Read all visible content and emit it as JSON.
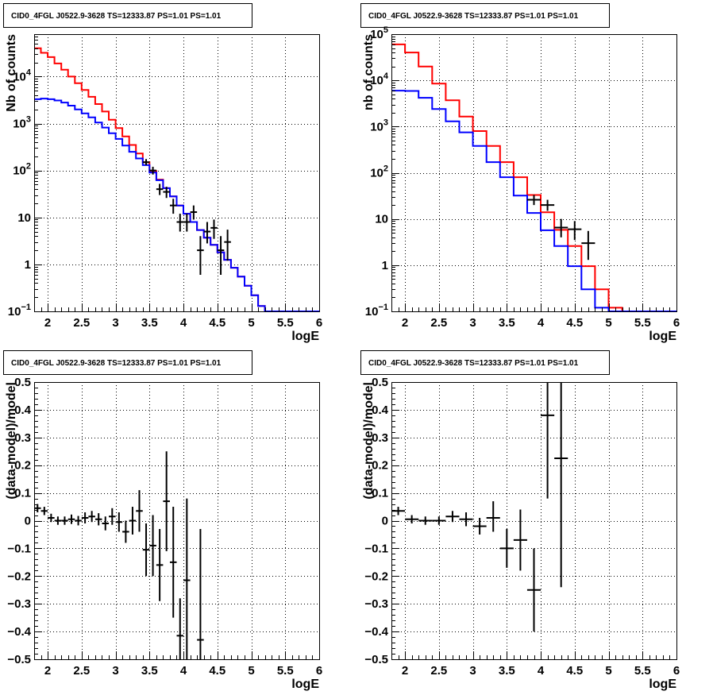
{
  "chart_data": [
    {
      "type": "histogram-step",
      "title": "CID0_4FGL J0522.9-3628 TS=12333.87 PS=1.01 PS=1.01",
      "xlabel": "logE",
      "ylabel": "Nb of counts",
      "xlim": [
        1.8,
        6.0
      ],
      "ylim": [
        0.1,
        80000
      ],
      "yscale": "log",
      "grid": true,
      "xticks": [
        "2",
        "2.5",
        "3",
        "3.5",
        "4",
        "4.5",
        "5",
        "5.5",
        "6"
      ],
      "xtick_values": [
        2,
        2.5,
        3,
        3.5,
        4,
        4.5,
        5,
        5.5,
        6
      ],
      "yticks": [
        {
          "value": 0.1,
          "base": "10",
          "exp": "−1"
        },
        {
          "value": 1,
          "label": "1"
        },
        {
          "value": 10,
          "label": "10"
        },
        {
          "value": 100,
          "base": "10",
          "exp": "2"
        },
        {
          "value": 1000,
          "base": "10",
          "exp": "3"
        },
        {
          "value": 10000,
          "base": "10",
          "exp": "4"
        }
      ],
      "bin_width": 0.1,
      "series": [
        {
          "color": "#ff0000",
          "edges_start": 1.8,
          "values": [
            40000,
            32000,
            26000,
            19000,
            14000,
            10000,
            7200,
            5200,
            3700,
            2600,
            1800,
            1200,
            800,
            530,
            350,
            230,
            150,
            98,
            64,
            42,
            28,
            18,
            12,
            8,
            5.4,
            3.7,
            2.6,
            1.8,
            1.25,
            0.85,
            0.55,
            0.35,
            0.22,
            0.13,
            0.1,
            0.1,
            0.1,
            0.1,
            0.1,
            0.1,
            0.1,
            0.1
          ]
        },
        {
          "color": "#0000ff",
          "edges_start": 1.8,
          "values": [
            3300,
            3400,
            3300,
            3100,
            2800,
            2400,
            2000,
            1650,
            1350,
            1050,
            820,
            620,
            470,
            340,
            250,
            180,
            130,
            90,
            62,
            42,
            28,
            18,
            12,
            8,
            5.4,
            3.7,
            2.6,
            1.8,
            1.25,
            0.85,
            0.55,
            0.35,
            0.22,
            0.13,
            0.1,
            0.1,
            0.1,
            0.1,
            0.1,
            0.1,
            0.1,
            0.1
          ]
        }
      ],
      "points": [
        {
          "x": 3.45,
          "y": 150,
          "xerr": 0.05,
          "ylo": 130,
          "yhi": 175
        },
        {
          "x": 3.55,
          "y": 100,
          "xerr": 0.05,
          "ylo": 82,
          "yhi": 120
        },
        {
          "x": 3.65,
          "y": 40,
          "xerr": 0.05,
          "ylo": 30,
          "yhi": 52
        },
        {
          "x": 3.75,
          "y": 35,
          "xerr": 0.05,
          "ylo": 26,
          "yhi": 45
        },
        {
          "x": 3.85,
          "y": 18,
          "xerr": 0.05,
          "ylo": 12,
          "yhi": 25
        },
        {
          "x": 3.95,
          "y": 8,
          "xerr": 0.05,
          "ylo": 5,
          "yhi": 12
        },
        {
          "x": 4.05,
          "y": 8,
          "xerr": 0.05,
          "ylo": 5,
          "yhi": 12
        },
        {
          "x": 4.15,
          "y": 13,
          "xerr": 0.05,
          "ylo": 9,
          "yhi": 18
        },
        {
          "x": 4.25,
          "y": 2,
          "xerr": 0.05,
          "ylo": 0.6,
          "yhi": 4
        },
        {
          "x": 4.35,
          "y": 5,
          "xerr": 0.05,
          "ylo": 2.8,
          "yhi": 8
        },
        {
          "x": 4.45,
          "y": 6,
          "xerr": 0.05,
          "ylo": 3.5,
          "yhi": 9
        },
        {
          "x": 4.55,
          "y": 2,
          "xerr": 0.05,
          "ylo": 0.6,
          "yhi": 4
        },
        {
          "x": 4.65,
          "y": 3,
          "xerr": 0.05,
          "ylo": 1.2,
          "yhi": 5.5
        }
      ]
    },
    {
      "type": "histogram-step",
      "title": "CID0_4FGL J0522.9-3628 TS=12333.87 PS=1.01 PS=1.01",
      "xlabel": "logE",
      "ylabel": "nb of counts",
      "xlim": [
        1.8,
        6.0
      ],
      "ylim": [
        0.1,
        100000
      ],
      "yscale": "log",
      "grid": true,
      "xticks": [
        "2",
        "2.5",
        "3",
        "3.5",
        "4",
        "4.5",
        "5",
        "5.5",
        "6"
      ],
      "xtick_values": [
        2,
        2.5,
        3,
        3.5,
        4,
        4.5,
        5,
        5.5,
        6
      ],
      "yticks": [
        {
          "value": 0.1,
          "base": "10",
          "exp": "−1"
        },
        {
          "value": 1,
          "label": "1"
        },
        {
          "value": 10,
          "label": "10"
        },
        {
          "value": 100,
          "base": "10",
          "exp": "2"
        },
        {
          "value": 1000,
          "base": "10",
          "exp": "3"
        },
        {
          "value": 10000,
          "base": "10",
          "exp": "4"
        },
        {
          "value": 100000,
          "base": "10",
          "exp": "5"
        }
      ],
      "bin_width": 0.2,
      "series": [
        {
          "color": "#ff0000",
          "edges_start": 1.8,
          "values": [
            60000,
            40000,
            20000,
            8500,
            3700,
            1650,
            800,
            380,
            170,
            80,
            33,
            14,
            5.8,
            2.6,
            0.95,
            0.3,
            0.12,
            0.1,
            0.1,
            0.1,
            0.1
          ]
        },
        {
          "color": "#0000ff",
          "edges_start": 1.8,
          "values": [
            6000,
            5900,
            4200,
            2400,
            1300,
            750,
            380,
            170,
            80,
            32,
            13.5,
            5.7,
            2.6,
            0.95,
            0.3,
            0.12,
            0.1,
            0.1,
            0.1,
            0.1,
            0.1
          ]
        }
      ],
      "points": [
        {
          "x": 3.9,
          "y": 26,
          "xerr": 0.1,
          "ylo": 20,
          "yhi": 33
        },
        {
          "x": 4.1,
          "y": 20,
          "xerr": 0.1,
          "ylo": 15,
          "yhi": 26
        },
        {
          "x": 4.3,
          "y": 6.5,
          "xerr": 0.1,
          "ylo": 4,
          "yhi": 10
        },
        {
          "x": 4.5,
          "y": 6,
          "xerr": 0.1,
          "ylo": 3.5,
          "yhi": 9
        },
        {
          "x": 4.7,
          "y": 3,
          "xerr": 0.1,
          "ylo": 1.3,
          "yhi": 5.5
        }
      ]
    },
    {
      "type": "errorbar",
      "title": "CID0_4FGL J0522.9-3628 TS=12333.87 PS=1.01 PS=1.01",
      "xlabel": "logE",
      "ylabel": "(data-model)/model",
      "xlim": [
        1.8,
        6.0
      ],
      "ylim": [
        -0.5,
        0.5
      ],
      "yscale": "linear",
      "grid": true,
      "xticks": [
        "2",
        "2.5",
        "3",
        "3.5",
        "4",
        "4.5",
        "5",
        "5.5",
        "6"
      ],
      "xtick_values": [
        2,
        2.5,
        3,
        3.5,
        4,
        4.5,
        5,
        5.5,
        6
      ],
      "yticks": [
        {
          "value": -0.5,
          "label": "−0.5"
        },
        {
          "value": -0.4,
          "label": "−0.4"
        },
        {
          "value": -0.3,
          "label": "−0.3"
        },
        {
          "value": -0.2,
          "label": "−0.2"
        },
        {
          "value": -0.1,
          "label": "−0.1"
        },
        {
          "value": 0,
          "label": "0"
        },
        {
          "value": 0.1,
          "label": "0.1"
        },
        {
          "value": 0.2,
          "label": "0.2"
        },
        {
          "value": 0.3,
          "label": "0.3"
        },
        {
          "value": 0.4,
          "label": "0.4"
        },
        {
          "value": 0.5,
          "label": "0.5"
        }
      ],
      "points": [
        {
          "x": 1.85,
          "y": 0.045,
          "xerr": 0.05,
          "ylo": 0.03,
          "yhi": 0.06
        },
        {
          "x": 1.95,
          "y": 0.035,
          "xerr": 0.05,
          "ylo": 0.02,
          "yhi": 0.05
        },
        {
          "x": 2.05,
          "y": 0.01,
          "xerr": 0.05,
          "ylo": -0.005,
          "yhi": 0.025
        },
        {
          "x": 2.15,
          "y": 0.0,
          "xerr": 0.05,
          "ylo": -0.015,
          "yhi": 0.015
        },
        {
          "x": 2.25,
          "y": 0.0,
          "xerr": 0.05,
          "ylo": -0.015,
          "yhi": 0.015
        },
        {
          "x": 2.35,
          "y": 0.005,
          "xerr": 0.05,
          "ylo": -0.012,
          "yhi": 0.022
        },
        {
          "x": 2.45,
          "y": 0.0,
          "xerr": 0.05,
          "ylo": -0.017,
          "yhi": 0.017
        },
        {
          "x": 2.55,
          "y": 0.01,
          "xerr": 0.05,
          "ylo": -0.01,
          "yhi": 0.03
        },
        {
          "x": 2.65,
          "y": 0.015,
          "xerr": 0.05,
          "ylo": -0.005,
          "yhi": 0.035
        },
        {
          "x": 2.75,
          "y": 0.005,
          "xerr": 0.05,
          "ylo": -0.017,
          "yhi": 0.027
        },
        {
          "x": 2.85,
          "y": -0.01,
          "xerr": 0.05,
          "ylo": -0.035,
          "yhi": 0.015
        },
        {
          "x": 2.95,
          "y": 0.015,
          "xerr": 0.05,
          "ylo": -0.015,
          "yhi": 0.045
        },
        {
          "x": 3.05,
          "y": -0.005,
          "xerr": 0.05,
          "ylo": -0.04,
          "yhi": 0.03
        },
        {
          "x": 3.15,
          "y": -0.04,
          "xerr": 0.05,
          "ylo": -0.08,
          "yhi": 0.0
        },
        {
          "x": 3.25,
          "y": 0.0,
          "xerr": 0.05,
          "ylo": -0.05,
          "yhi": 0.05
        },
        {
          "x": 3.35,
          "y": 0.035,
          "xerr": 0.05,
          "ylo": -0.04,
          "yhi": 0.11
        },
        {
          "x": 3.45,
          "y": -0.105,
          "xerr": 0.05,
          "ylo": -0.2,
          "yhi": -0.01
        },
        {
          "x": 3.55,
          "y": -0.09,
          "xerr": 0.05,
          "ylo": -0.2,
          "yhi": 0.02
        },
        {
          "x": 3.65,
          "y": -0.16,
          "xerr": 0.05,
          "ylo": -0.29,
          "yhi": -0.03
        },
        {
          "x": 3.75,
          "y": 0.07,
          "xerr": 0.05,
          "ylo": -0.11,
          "yhi": 0.25
        },
        {
          "x": 3.85,
          "y": -0.15,
          "xerr": 0.05,
          "ylo": -0.35,
          "yhi": 0.05
        },
        {
          "x": 3.95,
          "y": -0.415,
          "xerr": 0.05,
          "ylo": -0.55,
          "yhi": -0.28
        },
        {
          "x": 4.05,
          "y": -0.215,
          "xerr": 0.05,
          "ylo": -0.55,
          "yhi": 0.08
        },
        {
          "x": 4.25,
          "y": -0.43,
          "xerr": 0.05,
          "ylo": -0.55,
          "yhi": -0.03
        }
      ]
    },
    {
      "type": "errorbar",
      "title": "CID0_4FGL J0522.9-3628 TS=12333.87 PS=1.01 PS=1.01",
      "xlabel": "logE",
      "ylabel": "(data-model)/model",
      "xlim": [
        1.8,
        6.0
      ],
      "ylim": [
        -0.5,
        0.5
      ],
      "yscale": "linear",
      "grid": true,
      "xticks": [
        "2",
        "2.5",
        "3",
        "3.5",
        "4",
        "4.5",
        "5",
        "5.5",
        "6"
      ],
      "xtick_values": [
        2,
        2.5,
        3,
        3.5,
        4,
        4.5,
        5,
        5.5,
        6
      ],
      "yticks": [
        {
          "value": -0.5,
          "label": "−0.5"
        },
        {
          "value": -0.4,
          "label": "−0.4"
        },
        {
          "value": -0.3,
          "label": "−0.3"
        },
        {
          "value": -0.2,
          "label": "−0.2"
        },
        {
          "value": -0.1,
          "label": "−0.1"
        },
        {
          "value": 0,
          "label": "0"
        },
        {
          "value": 0.1,
          "label": "0.1"
        },
        {
          "value": 0.2,
          "label": "0.2"
        },
        {
          "value": 0.3,
          "label": "0.3"
        },
        {
          "value": 0.4,
          "label": "0.4"
        },
        {
          "value": 0.5,
          "label": "0.5"
        }
      ],
      "points": [
        {
          "x": 1.9,
          "y": 0.035,
          "xerr": 0.1,
          "ylo": 0.02,
          "yhi": 0.05
        },
        {
          "x": 2.1,
          "y": 0.005,
          "xerr": 0.1,
          "ylo": -0.01,
          "yhi": 0.02
        },
        {
          "x": 2.3,
          "y": 0.0,
          "xerr": 0.1,
          "ylo": -0.015,
          "yhi": 0.015
        },
        {
          "x": 2.5,
          "y": 0.0,
          "xerr": 0.1,
          "ylo": -0.015,
          "yhi": 0.015
        },
        {
          "x": 2.7,
          "y": 0.015,
          "xerr": 0.1,
          "ylo": -0.005,
          "yhi": 0.035
        },
        {
          "x": 2.9,
          "y": 0.005,
          "xerr": 0.1,
          "ylo": -0.02,
          "yhi": 0.03
        },
        {
          "x": 3.1,
          "y": -0.02,
          "xerr": 0.1,
          "ylo": -0.05,
          "yhi": 0.01
        },
        {
          "x": 3.3,
          "y": 0.01,
          "xerr": 0.1,
          "ylo": -0.04,
          "yhi": 0.07
        },
        {
          "x": 3.5,
          "y": -0.1,
          "xerr": 0.1,
          "ylo": -0.17,
          "yhi": -0.03
        },
        {
          "x": 3.7,
          "y": -0.07,
          "xerr": 0.1,
          "ylo": -0.18,
          "yhi": 0.04
        },
        {
          "x": 3.9,
          "y": -0.25,
          "xerr": 0.1,
          "ylo": -0.4,
          "yhi": -0.1
        },
        {
          "x": 4.1,
          "y": 0.38,
          "xerr": 0.1,
          "ylo": 0.08,
          "yhi": 0.55
        },
        {
          "x": 4.3,
          "y": 0.225,
          "xerr": 0.1,
          "ylo": -0.24,
          "yhi": 0.55
        }
      ]
    }
  ]
}
